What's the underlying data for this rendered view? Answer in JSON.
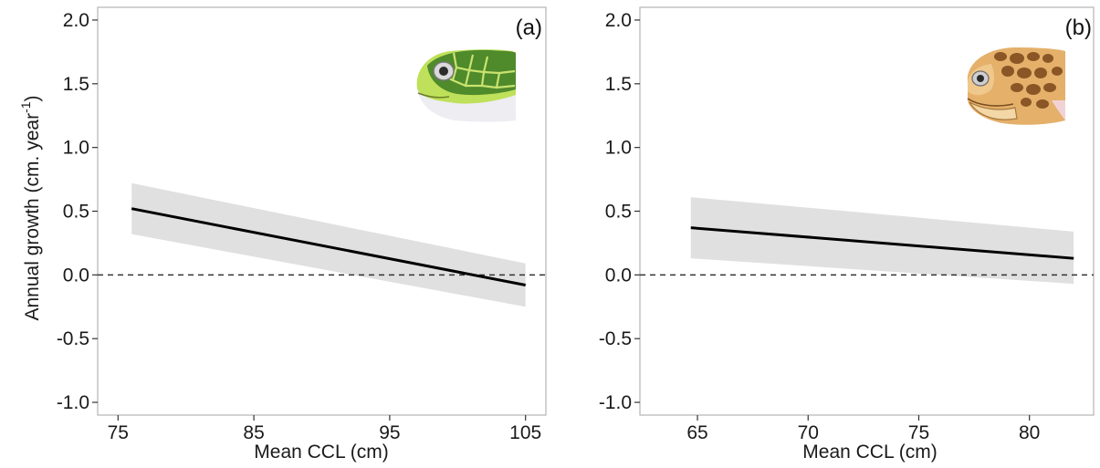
{
  "chart_data": [
    {
      "type": "line",
      "panel_label": "(a)",
      "xlabel": "Mean CCL (cm)",
      "ylabel": "Annual growth (cm. year",
      "ylabel_superscript": "-1",
      "ylabel_suffix": ")",
      "xlim": [
        73.5,
        106.5
      ],
      "ylim": [
        -1.1,
        2.1
      ],
      "x_ticks": [
        75,
        85,
        95,
        105
      ],
      "x_tick_labels": [
        "75",
        "85",
        "95",
        "105"
      ],
      "y_ticks": [
        -1.0,
        -0.5,
        0.0,
        0.5,
        1.0,
        1.5,
        2.0
      ],
      "y_tick_labels": [
        "-1.0",
        "-0.5",
        "0.0",
        "0.5",
        "1.0",
        "1.5",
        "2.0"
      ],
      "reference_line": 0.0,
      "grid": false,
      "series": [
        {
          "x": [
            76,
            105
          ],
          "y": [
            0.52,
            -0.08
          ],
          "ci_lower": [
            0.32,
            -0.25
          ],
          "ci_upper": [
            0.72,
            0.09
          ]
        }
      ],
      "colors": {
        "line": "#000000",
        "ribbon": "#e0e0e0",
        "reference": "#333333",
        "frame": "#b3b3b3"
      },
      "icon": "green-turtle-head-icon"
    },
    {
      "type": "line",
      "panel_label": "(b)",
      "xlabel": "Mean CCL (cm)",
      "xlim": [
        62.4,
        82.9
      ],
      "ylim": [
        -1.1,
        2.1
      ],
      "x_ticks": [
        65,
        70,
        75,
        80
      ],
      "x_tick_labels": [
        "65",
        "70",
        "75",
        "80"
      ],
      "y_ticks": [
        -1.0,
        -0.5,
        0.0,
        0.5,
        1.0,
        1.5,
        2.0
      ],
      "y_tick_labels": [
        "-1.0",
        "-0.5",
        "0.0",
        "0.5",
        "1.0",
        "1.5",
        "2.0"
      ],
      "reference_line": 0.0,
      "grid": false,
      "series": [
        {
          "x": [
            64.7,
            82
          ],
          "y": [
            0.37,
            0.13
          ],
          "ci_lower": [
            0.13,
            -0.07
          ],
          "ci_upper": [
            0.61,
            0.34
          ]
        }
      ],
      "colors": {
        "line": "#000000",
        "ribbon": "#e0e0e0",
        "reference": "#333333",
        "frame": "#b3b3b3"
      },
      "icon": "loggerhead-turtle-head-icon"
    }
  ]
}
